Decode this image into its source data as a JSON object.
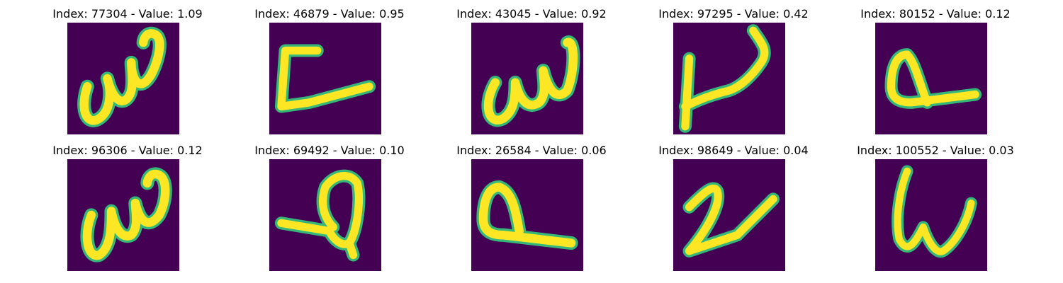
{
  "figure": {
    "panels": [
      {
        "title": "Index: 77304 - Value: 1.09",
        "stroke_color": "#fde725",
        "edge_color": "#35b779"
      },
      {
        "title": "Index: 46879 - Value: 0.95",
        "stroke_color": "#fde725",
        "edge_color": "#35b779"
      },
      {
        "title": "Index: 43045 - Value: 0.92",
        "stroke_color": "#fde725",
        "edge_color": "#35b779"
      },
      {
        "title": "Index: 97295 - Value: 0.42",
        "stroke_color": "#fde725",
        "edge_color": "#35b779"
      },
      {
        "title": "Index: 80152 - Value: 0.12",
        "stroke_color": "#fde725",
        "edge_color": "#35b779"
      },
      {
        "title": "Index: 96306 - Value: 0.12",
        "stroke_color": "#fde725",
        "edge_color": "#35b779"
      },
      {
        "title": "Index: 69492 - Value: 0.10",
        "stroke_color": "#fde725",
        "edge_color": "#35b779"
      },
      {
        "title": "Index: 26584 - Value: 0.06",
        "stroke_color": "#fde725",
        "edge_color": "#35b779"
      },
      {
        "title": "Index: 98649 - Value: 0.04",
        "stroke_color": "#fde725",
        "edge_color": "#35b779"
      },
      {
        "title": "Index: 100552 - Value: 0.03",
        "stroke_color": "#fde725",
        "edge_color": "#35b779"
      }
    ],
    "background_color": "#440154"
  }
}
